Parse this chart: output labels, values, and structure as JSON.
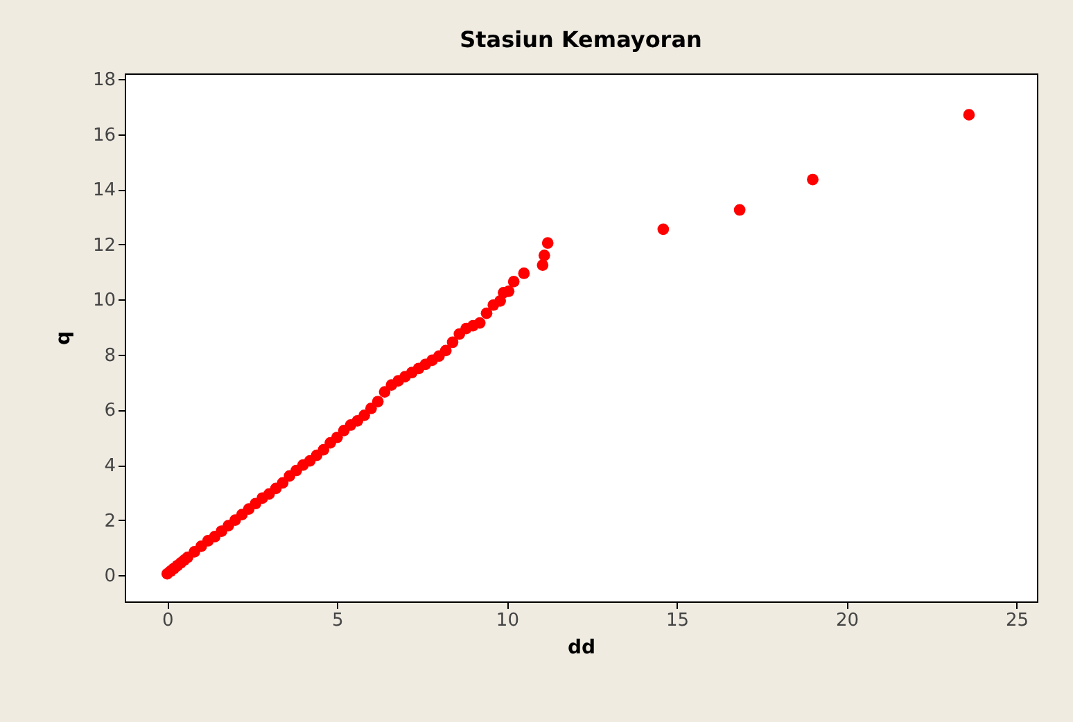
{
  "chart_data": {
    "type": "scatter",
    "title": "Stasiun Kemayoran",
    "xlabel": "dd",
    "ylabel": "q",
    "xlim": [
      -1.25,
      25.6
    ],
    "ylim": [
      -0.95,
      18.2
    ],
    "xticks": [
      0,
      5,
      10,
      15,
      20,
      25
    ],
    "yticks": [
      0,
      2,
      4,
      6,
      8,
      10,
      12,
      14,
      16,
      18
    ],
    "grid": false,
    "marker": "circle",
    "series": [
      {
        "color": "#ff0000",
        "x": [
          0,
          0.1,
          0.2,
          0.3,
          0.4,
          0.5,
          0.6,
          0.8,
          1.0,
          1.2,
          1.4,
          1.6,
          1.8,
          2.0,
          2.2,
          2.4,
          2.6,
          2.8,
          3.0,
          3.2,
          3.4,
          3.6,
          3.8,
          4.0,
          4.2,
          4.4,
          4.6,
          4.8,
          5.0,
          5.2,
          5.4,
          5.6,
          5.8,
          6.0,
          6.2,
          6.4,
          6.6,
          6.8,
          7.0,
          7.2,
          7.4,
          7.6,
          7.8,
          8.0,
          8.2,
          8.4,
          8.6,
          8.8,
          9.0,
          9.2,
          9.4,
          9.6,
          9.8,
          9.9,
          10.05,
          10.2,
          10.5,
          11.05,
          11.1,
          11.2,
          14.6,
          16.85,
          19.0,
          23.6
        ],
        "values": [
          0.05,
          0.15,
          0.25,
          0.35,
          0.45,
          0.55,
          0.65,
          0.85,
          1.05,
          1.25,
          1.4,
          1.6,
          1.8,
          2.0,
          2.2,
          2.4,
          2.6,
          2.8,
          2.95,
          3.15,
          3.35,
          3.6,
          3.8,
          4.0,
          4.15,
          4.35,
          4.55,
          4.8,
          5.0,
          5.25,
          5.45,
          5.6,
          5.8,
          6.05,
          6.3,
          6.65,
          6.9,
          7.05,
          7.2,
          7.35,
          7.5,
          7.65,
          7.8,
          7.95,
          8.15,
          8.45,
          8.75,
          8.95,
          9.05,
          9.15,
          9.5,
          9.8,
          9.95,
          10.25,
          10.3,
          10.65,
          10.95,
          11.25,
          11.6,
          12.05,
          12.55,
          13.25,
          14.35,
          16.7
        ]
      }
    ]
  }
}
